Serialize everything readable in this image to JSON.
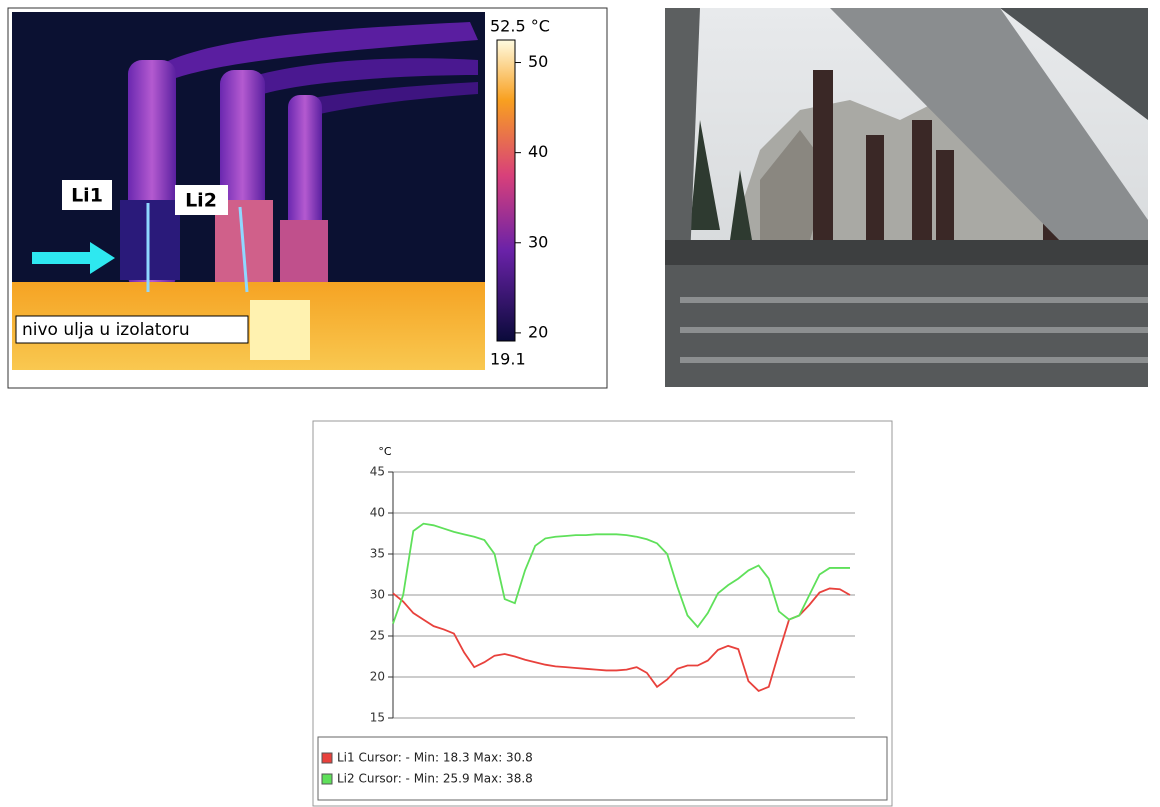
{
  "thermal_image": {
    "colorbar": {
      "max": {
        "value": 52.5,
        "label": "52.5 °C"
      },
      "min": 19.1,
      "ticks": [
        20,
        30,
        40,
        50
      ]
    },
    "markers": [
      "Li1",
      "Li2"
    ],
    "annotation": "nivo ulja u izolatoru"
  },
  "chart_data": {
    "type": "line",
    "y_label": "°C",
    "ylim": [
      15,
      45
    ],
    "yticks": [
      15,
      20,
      25,
      30,
      35,
      40,
      45
    ],
    "grid": true,
    "series": [
      {
        "name": "Li1 Cursor: - Min: 18.3 Max: 30.8",
        "color": "#e8413c",
        "values": [
          30.2,
          29.2,
          27.8,
          27,
          26.2,
          25.8,
          25.3,
          23,
          21.2,
          21.8,
          22.6,
          22.8,
          22.5,
          22.1,
          21.8,
          21.5,
          21.3,
          21.2,
          21.1,
          21,
          20.9,
          20.8,
          20.8,
          20.9,
          21.2,
          20.5,
          18.8,
          19.7,
          21,
          21.4,
          21.4,
          22,
          23.3,
          23.8,
          23.4,
          19.5,
          18.3,
          18.8,
          23,
          27,
          27.5,
          28.8,
          30.3,
          30.8,
          30.7,
          30
        ]
      },
      {
        "name": "Li2 Cursor: - Min: 25.9 Max: 38.8",
        "color": "#5fe05a",
        "values": [
          26.5,
          30,
          37.8,
          38.7,
          38.5,
          38.1,
          37.7,
          37.4,
          37.1,
          36.7,
          35,
          29.5,
          29,
          33,
          36,
          36.9,
          37.1,
          37.2,
          37.3,
          37.3,
          37.4,
          37.4,
          37.4,
          37.3,
          37.1,
          36.8,
          36.3,
          35,
          31,
          27.5,
          26.1,
          27.8,
          30.2,
          31.2,
          32,
          33,
          33.6,
          32,
          28,
          27,
          27.5,
          30,
          32.5,
          33.3,
          33.3,
          33.3
        ]
      }
    ]
  }
}
